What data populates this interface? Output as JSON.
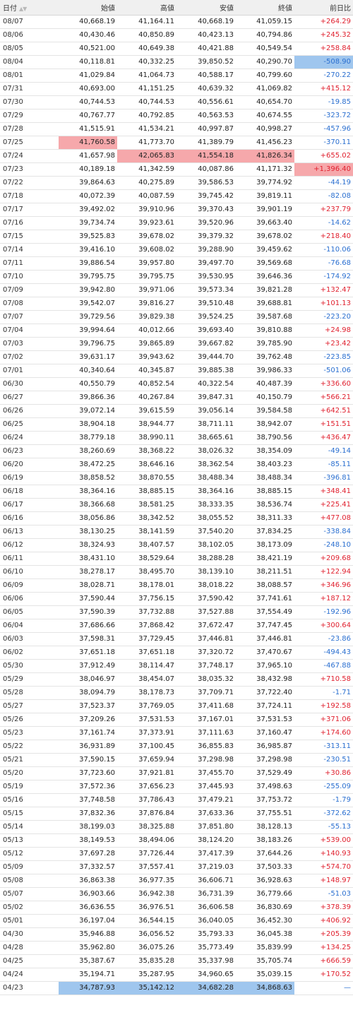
{
  "header": {
    "date": "日付",
    "sort_indicator": "▲▼",
    "open": "始値",
    "high": "高値",
    "low": "安値",
    "close": "終値",
    "change": "前日比"
  },
  "highlight_colors": {
    "max": "#f6a8ab",
    "min": "#9fc6ee"
  },
  "rows": [
    {
      "date": "08/07",
      "open": "40,668.19",
      "high": "41,164.11",
      "low": "40,668.19",
      "close": "41,059.15",
      "change": "+264.29"
    },
    {
      "date": "08/06",
      "open": "40,430.46",
      "high": "40,850.89",
      "low": "40,423.13",
      "close": "40,794.86",
      "change": "+245.32"
    },
    {
      "date": "08/05",
      "open": "40,521.00",
      "high": "40,649.38",
      "low": "40,421.88",
      "close": "40,549.54",
      "change": "+258.84"
    },
    {
      "date": "08/04",
      "open": "40,118.81",
      "high": "40,332.25",
      "low": "39,850.52",
      "close": "40,290.70",
      "change": "-508.90",
      "hl": {
        "change": "min"
      }
    },
    {
      "date": "08/01",
      "open": "41,029.84",
      "high": "41,064.73",
      "low": "40,588.17",
      "close": "40,799.60",
      "change": "-270.22"
    },
    {
      "date": "07/31",
      "open": "40,693.00",
      "high": "41,151.25",
      "low": "40,639.32",
      "close": "41,069.82",
      "change": "+415.12"
    },
    {
      "date": "07/30",
      "open": "40,744.53",
      "high": "40,744.53",
      "low": "40,556.61",
      "close": "40,654.70",
      "change": "-19.85"
    },
    {
      "date": "07/29",
      "open": "40,767.77",
      "high": "40,792.85",
      "low": "40,563.53",
      "close": "40,674.55",
      "change": "-323.72"
    },
    {
      "date": "07/28",
      "open": "41,515.91",
      "high": "41,534.21",
      "low": "40,997.87",
      "close": "40,998.27",
      "change": "-457.96"
    },
    {
      "date": "07/25",
      "open": "41,760.58",
      "high": "41,773.70",
      "low": "41,389.79",
      "close": "41,456.23",
      "change": "-370.11",
      "hl": {
        "open": "max"
      }
    },
    {
      "date": "07/24",
      "open": "41,657.98",
      "high": "42,065.83",
      "low": "41,554.18",
      "close": "41,826.34",
      "change": "+655.02",
      "hl": {
        "high": "max",
        "low": "max",
        "close": "max"
      }
    },
    {
      "date": "07/23",
      "open": "40,189.18",
      "high": "41,342.59",
      "low": "40,087.86",
      "close": "41,171.32",
      "change": "+1,396.40",
      "hl": {
        "change": "max"
      }
    },
    {
      "date": "07/22",
      "open": "39,864.63",
      "high": "40,275.89",
      "low": "39,586.53",
      "close": "39,774.92",
      "change": "-44.19"
    },
    {
      "date": "07/18",
      "open": "40,072.39",
      "high": "40,087.59",
      "low": "39,745.42",
      "close": "39,819.11",
      "change": "-82.08"
    },
    {
      "date": "07/17",
      "open": "39,492.02",
      "high": "39,910.96",
      "low": "39,370.43",
      "close": "39,901.19",
      "change": "+237.79"
    },
    {
      "date": "07/16",
      "open": "39,734.74",
      "high": "39,923.61",
      "low": "39,520.96",
      "close": "39,663.40",
      "change": "-14.62"
    },
    {
      "date": "07/15",
      "open": "39,525.83",
      "high": "39,678.02",
      "low": "39,379.32",
      "close": "39,678.02",
      "change": "+218.40"
    },
    {
      "date": "07/14",
      "open": "39,416.10",
      "high": "39,608.02",
      "low": "39,288.90",
      "close": "39,459.62",
      "change": "-110.06"
    },
    {
      "date": "07/11",
      "open": "39,886.54",
      "high": "39,957.80",
      "low": "39,497.70",
      "close": "39,569.68",
      "change": "-76.68"
    },
    {
      "date": "07/10",
      "open": "39,795.75",
      "high": "39,795.75",
      "low": "39,530.95",
      "close": "39,646.36",
      "change": "-174.92"
    },
    {
      "date": "07/09",
      "open": "39,942.80",
      "high": "39,971.06",
      "low": "39,573.34",
      "close": "39,821.28",
      "change": "+132.47"
    },
    {
      "date": "07/08",
      "open": "39,542.07",
      "high": "39,816.27",
      "low": "39,510.48",
      "close": "39,688.81",
      "change": "+101.13"
    },
    {
      "date": "07/07",
      "open": "39,729.56",
      "high": "39,829.38",
      "low": "39,524.25",
      "close": "39,587.68",
      "change": "-223.20"
    },
    {
      "date": "07/04",
      "open": "39,994.64",
      "high": "40,012.66",
      "low": "39,693.40",
      "close": "39,810.88",
      "change": "+24.98"
    },
    {
      "date": "07/03",
      "open": "39,796.75",
      "high": "39,865.89",
      "low": "39,667.82",
      "close": "39,785.90",
      "change": "+23.42"
    },
    {
      "date": "07/02",
      "open": "39,631.17",
      "high": "39,943.62",
      "low": "39,444.70",
      "close": "39,762.48",
      "change": "-223.85"
    },
    {
      "date": "07/01",
      "open": "40,340.64",
      "high": "40,345.87",
      "low": "39,885.38",
      "close": "39,986.33",
      "change": "-501.06"
    },
    {
      "date": "06/30",
      "open": "40,550.79",
      "high": "40,852.54",
      "low": "40,322.54",
      "close": "40,487.39",
      "change": "+336.60"
    },
    {
      "date": "06/27",
      "open": "39,866.36",
      "high": "40,267.84",
      "low": "39,847.31",
      "close": "40,150.79",
      "change": "+566.21"
    },
    {
      "date": "06/26",
      "open": "39,072.14",
      "high": "39,615.59",
      "low": "39,056.14",
      "close": "39,584.58",
      "change": "+642.51"
    },
    {
      "date": "06/25",
      "open": "38,904.18",
      "high": "38,944.77",
      "low": "38,711.11",
      "close": "38,942.07",
      "change": "+151.51"
    },
    {
      "date": "06/24",
      "open": "38,779.18",
      "high": "38,990.11",
      "low": "38,665.61",
      "close": "38,790.56",
      "change": "+436.47"
    },
    {
      "date": "06/23",
      "open": "38,260.69",
      "high": "38,368.22",
      "low": "38,026.32",
      "close": "38,354.09",
      "change": "-49.14"
    },
    {
      "date": "06/20",
      "open": "38,472.25",
      "high": "38,646.16",
      "low": "38,362.54",
      "close": "38,403.23",
      "change": "-85.11"
    },
    {
      "date": "06/19",
      "open": "38,858.52",
      "high": "38,870.55",
      "low": "38,488.34",
      "close": "38,488.34",
      "change": "-396.81"
    },
    {
      "date": "06/18",
      "open": "38,364.16",
      "high": "38,885.15",
      "low": "38,364.16",
      "close": "38,885.15",
      "change": "+348.41"
    },
    {
      "date": "06/17",
      "open": "38,366.68",
      "high": "38,581.25",
      "low": "38,333.35",
      "close": "38,536.74",
      "change": "+225.41"
    },
    {
      "date": "06/16",
      "open": "38,056.86",
      "high": "38,342.52",
      "low": "38,055.52",
      "close": "38,311.33",
      "change": "+477.08"
    },
    {
      "date": "06/13",
      "open": "38,130.25",
      "high": "38,141.59",
      "low": "37,540.20",
      "close": "37,834.25",
      "change": "-338.84"
    },
    {
      "date": "06/12",
      "open": "38,324.93",
      "high": "38,407.57",
      "low": "38,102.05",
      "close": "38,173.09",
      "change": "-248.10"
    },
    {
      "date": "06/11",
      "open": "38,431.10",
      "high": "38,529.64",
      "low": "38,288.28",
      "close": "38,421.19",
      "change": "+209.68"
    },
    {
      "date": "06/10",
      "open": "38,278.17",
      "high": "38,495.70",
      "low": "38,139.10",
      "close": "38,211.51",
      "change": "+122.94"
    },
    {
      "date": "06/09",
      "open": "38,028.71",
      "high": "38,178.01",
      "low": "38,018.22",
      "close": "38,088.57",
      "change": "+346.96"
    },
    {
      "date": "06/06",
      "open": "37,590.44",
      "high": "37,756.15",
      "low": "37,590.42",
      "close": "37,741.61",
      "change": "+187.12"
    },
    {
      "date": "06/05",
      "open": "37,590.39",
      "high": "37,732.88",
      "low": "37,527.88",
      "close": "37,554.49",
      "change": "-192.96"
    },
    {
      "date": "06/04",
      "open": "37,686.66",
      "high": "37,868.42",
      "low": "37,672.47",
      "close": "37,747.45",
      "change": "+300.64"
    },
    {
      "date": "06/03",
      "open": "37,598.31",
      "high": "37,729.45",
      "low": "37,446.81",
      "close": "37,446.81",
      "change": "-23.86"
    },
    {
      "date": "06/02",
      "open": "37,651.18",
      "high": "37,651.18",
      "low": "37,320.72",
      "close": "37,470.67",
      "change": "-494.43"
    },
    {
      "date": "05/30",
      "open": "37,912.49",
      "high": "38,114.47",
      "low": "37,748.17",
      "close": "37,965.10",
      "change": "-467.88"
    },
    {
      "date": "05/29",
      "open": "38,046.97",
      "high": "38,454.07",
      "low": "38,035.32",
      "close": "38,432.98",
      "change": "+710.58"
    },
    {
      "date": "05/28",
      "open": "38,094.79",
      "high": "38,178.73",
      "low": "37,709.71",
      "close": "37,722.40",
      "change": "-1.71"
    },
    {
      "date": "05/27",
      "open": "37,523.37",
      "high": "37,769.05",
      "low": "37,411.68",
      "close": "37,724.11",
      "change": "+192.58"
    },
    {
      "date": "05/26",
      "open": "37,209.26",
      "high": "37,531.53",
      "low": "37,167.01",
      "close": "37,531.53",
      "change": "+371.06"
    },
    {
      "date": "05/23",
      "open": "37,161.74",
      "high": "37,373.91",
      "low": "37,111.63",
      "close": "37,160.47",
      "change": "+174.60"
    },
    {
      "date": "05/22",
      "open": "36,931.89",
      "high": "37,100.45",
      "low": "36,855.83",
      "close": "36,985.87",
      "change": "-313.11"
    },
    {
      "date": "05/21",
      "open": "37,590.15",
      "high": "37,659.94",
      "low": "37,298.98",
      "close": "37,298.98",
      "change": "-230.51"
    },
    {
      "date": "05/20",
      "open": "37,723.60",
      "high": "37,921.81",
      "low": "37,455.70",
      "close": "37,529.49",
      "change": "+30.86"
    },
    {
      "date": "05/19",
      "open": "37,572.36",
      "high": "37,656.23",
      "low": "37,445.93",
      "close": "37,498.63",
      "change": "-255.09"
    },
    {
      "date": "05/16",
      "open": "37,748.58",
      "high": "37,786.43",
      "low": "37,479.21",
      "close": "37,753.72",
      "change": "-1.79"
    },
    {
      "date": "05/15",
      "open": "37,832.36",
      "high": "37,876.84",
      "low": "37,633.36",
      "close": "37,755.51",
      "change": "-372.62"
    },
    {
      "date": "05/14",
      "open": "38,199.03",
      "high": "38,325.88",
      "low": "37,851.80",
      "close": "38,128.13",
      "change": "-55.13"
    },
    {
      "date": "05/13",
      "open": "38,149.53",
      "high": "38,494.06",
      "low": "38,124.20",
      "close": "38,183.26",
      "change": "+539.00"
    },
    {
      "date": "05/12",
      "open": "37,697.28",
      "high": "37,726.44",
      "low": "37,417.39",
      "close": "37,644.26",
      "change": "+140.93"
    },
    {
      "date": "05/09",
      "open": "37,332.57",
      "high": "37,557.41",
      "low": "37,219.03",
      "close": "37,503.33",
      "change": "+574.70"
    },
    {
      "date": "05/08",
      "open": "36,863.38",
      "high": "36,977.35",
      "low": "36,606.71",
      "close": "36,928.63",
      "change": "+148.97"
    },
    {
      "date": "05/07",
      "open": "36,903.66",
      "high": "36,942.38",
      "low": "36,731.39",
      "close": "36,779.66",
      "change": "-51.03"
    },
    {
      "date": "05/02",
      "open": "36,636.55",
      "high": "36,976.51",
      "low": "36,606.58",
      "close": "36,830.69",
      "change": "+378.39"
    },
    {
      "date": "05/01",
      "open": "36,197.04",
      "high": "36,544.15",
      "low": "36,040.05",
      "close": "36,452.30",
      "change": "+406.92"
    },
    {
      "date": "04/30",
      "open": "35,946.88",
      "high": "36,056.52",
      "low": "35,793.33",
      "close": "36,045.38",
      "change": "+205.39"
    },
    {
      "date": "04/28",
      "open": "35,962.80",
      "high": "36,075.26",
      "low": "35,773.49",
      "close": "35,839.99",
      "change": "+134.25"
    },
    {
      "date": "04/25",
      "open": "35,387.67",
      "high": "35,835.28",
      "low": "35,337.98",
      "close": "35,705.74",
      "change": "+666.59"
    },
    {
      "date": "04/24",
      "open": "35,194.71",
      "high": "35,287.95",
      "low": "34,960.65",
      "close": "35,039.15",
      "change": "+170.52"
    },
    {
      "date": "04/23",
      "open": "34,787.93",
      "high": "35,142.12",
      "low": "34,682.28",
      "close": "34,868.63",
      "change": "—",
      "hl": {
        "open": "min",
        "high": "min",
        "low": "min",
        "close": "min"
      }
    }
  ]
}
